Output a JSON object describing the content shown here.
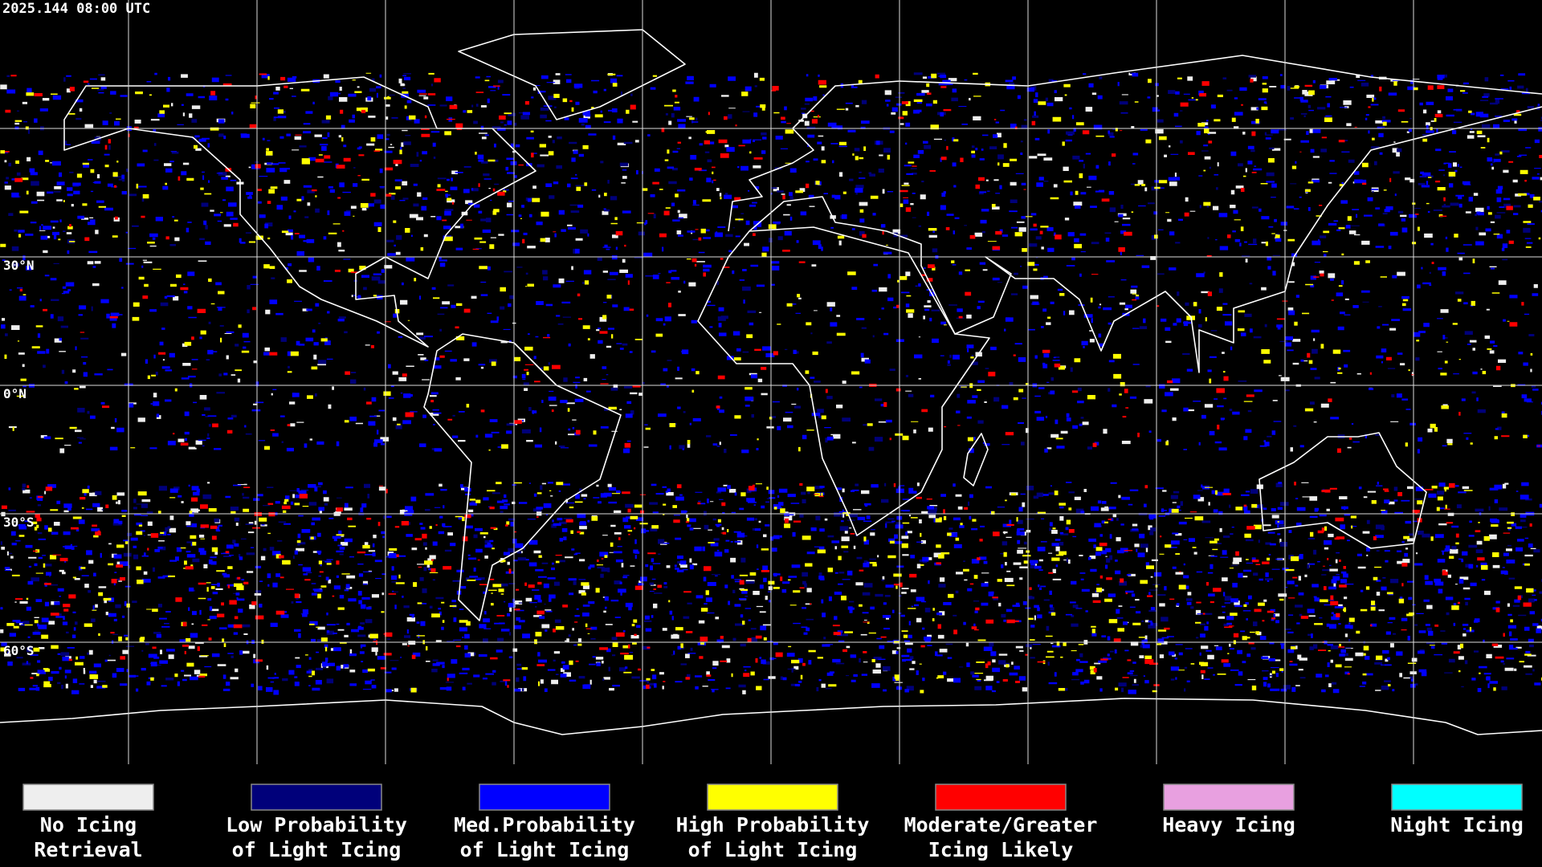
{
  "timestamp": "2025.144 08:00 UTC",
  "latitude_labels": [
    "30°N",
    "0°N",
    "30°S",
    "60°S"
  ],
  "legend": [
    {
      "label_lines": [
        "No Icing",
        "Retrieval"
      ],
      "color": "#eeeeee"
    },
    {
      "label_lines": [
        "Low Probability",
        "of Light Icing"
      ],
      "color": "#00007a"
    },
    {
      "label_lines": [
        "Med.Probability",
        "of Light Icing"
      ],
      "color": "#0000ff"
    },
    {
      "label_lines": [
        "High Probability",
        "of Light Icing"
      ],
      "color": "#ffff00"
    },
    {
      "label_lines": [
        "Moderate/Greater",
        "Icing Likely"
      ],
      "color": "#ff0000"
    },
    {
      "label_lines": [
        "Heavy Icing"
      ],
      "color": "#e8a0e0"
    },
    {
      "label_lines": [
        "Night Icing"
      ],
      "color": "#00ffff"
    }
  ]
}
